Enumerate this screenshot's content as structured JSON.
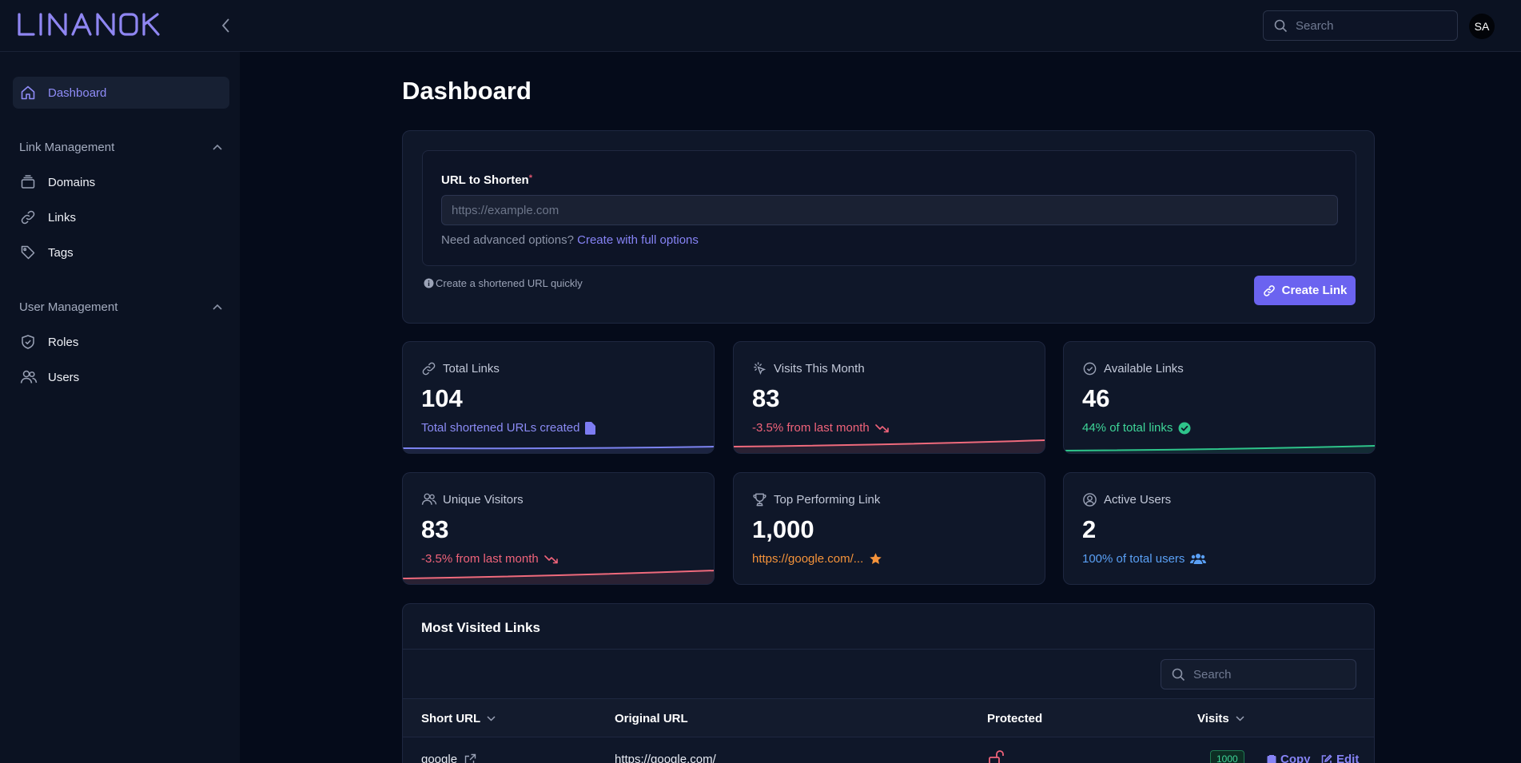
{
  "app": {
    "brand": "LINANOK",
    "avatar_initials": "SA"
  },
  "search": {
    "placeholder": "Search"
  },
  "sidebar": {
    "dashboard": "Dashboard",
    "groups": [
      {
        "label": "Link Management",
        "items": [
          "Domains",
          "Links",
          "Tags"
        ]
      },
      {
        "label": "User Management",
        "items": [
          "Roles",
          "Users"
        ]
      }
    ]
  },
  "page": {
    "title": "Dashboard"
  },
  "shortener": {
    "label": "URL to Shorten",
    "required_mark": "*",
    "placeholder": "https://example.com",
    "advanced_text": "Need advanced options?",
    "advanced_link": "Create with full options",
    "hint": "Create a shortened URL quickly",
    "button": "Create Link"
  },
  "stats": [
    {
      "label": "Total Links",
      "value": "104",
      "sub": "Total shortened URLs created",
      "sub_color": "#8b8bf5",
      "trend_color": "#7c83f0",
      "icon": "link-icon",
      "sub_icon": "document-icon"
    },
    {
      "label": "Visits This Month",
      "value": "83",
      "sub": "-3.5% from last month",
      "sub_color": "#f0637a",
      "trend_color": "#ef6a7c",
      "icon": "pointer-icon",
      "sub_icon": "trend-down-icon"
    },
    {
      "label": "Available Links",
      "value": "46",
      "sub": "44% of total links",
      "sub_color": "#3ed598",
      "trend_color": "#2ec48a",
      "icon": "check-circle-icon",
      "sub_icon": "check-badge-icon"
    },
    {
      "label": "Unique Visitors",
      "value": "83",
      "sub": "-3.5% from last month",
      "sub_color": "#f0637a",
      "trend_color": "#ef6a7c",
      "icon": "users-icon",
      "sub_icon": "trend-down-icon"
    },
    {
      "label": "Top Performing Link",
      "value": "1,000",
      "sub": "https://google.com/...",
      "sub_color": "#f5933a",
      "trend_color": null,
      "icon": "trophy-icon",
      "sub_icon": "star-icon"
    },
    {
      "label": "Active Users",
      "value": "2",
      "sub": "100% of total users",
      "sub_color": "#5aa0f5",
      "trend_color": null,
      "icon": "user-circle-icon",
      "sub_icon": "user-group-icon"
    }
  ],
  "table": {
    "title": "Most Visited Links",
    "search_placeholder": "Search",
    "columns": [
      "Short URL",
      "Original URL",
      "Protected",
      "Visits"
    ],
    "rows": [
      {
        "short_url": "google",
        "original_url": "https://google.com/",
        "protected": "unlocked",
        "visits": "1000",
        "copy": "Copy",
        "edit": "Edit"
      }
    ]
  },
  "colors": {
    "accent": "#6b63f0",
    "background": "#050b1a",
    "card": "#0f1729"
  }
}
